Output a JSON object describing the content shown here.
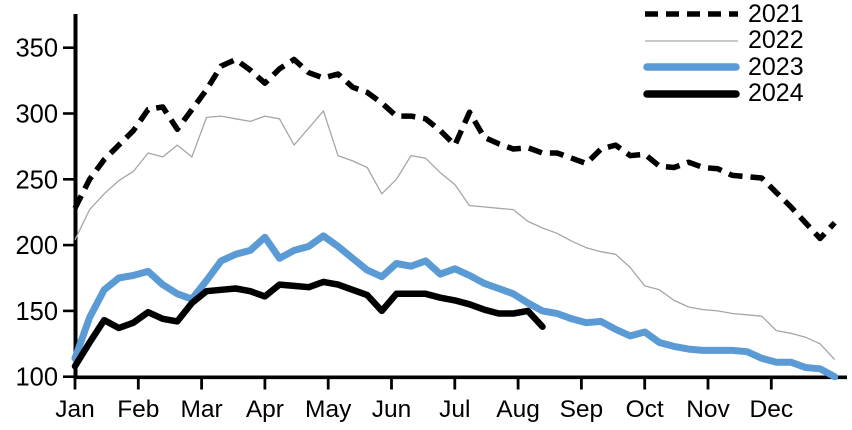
{
  "chart_data": {
    "type": "line",
    "title": "",
    "xlabel": "",
    "ylabel": "",
    "x_unit": "weekly",
    "months": [
      "Jan",
      "Feb",
      "Mar",
      "Apr",
      "May",
      "Jun",
      "Jul",
      "Aug",
      "Sep",
      "Oct",
      "Nov",
      "Dec"
    ],
    "y_ticks": [
      350,
      300,
      250,
      200,
      150,
      100
    ],
    "ylim": [
      100,
      365
    ],
    "grid": false,
    "legend_position": "top-right",
    "axis_color": "#000000",
    "series": [
      {
        "label": "2022",
        "color": "#a6a6a6",
        "style": "solid-thin",
        "stroke_width": 1.3,
        "values": [
          204,
          227,
          239,
          249,
          256,
          270,
          267,
          276,
          267,
          297,
          298,
          296,
          294,
          298,
          296,
          276,
          289,
          302,
          268,
          264,
          259,
          239,
          250,
          268,
          266,
          255,
          246,
          230,
          229,
          228,
          227,
          218,
          213,
          209,
          203,
          198,
          195,
          193,
          183,
          169,
          166,
          158,
          153,
          151,
          150,
          148,
          147,
          146,
          135,
          133,
          130,
          125,
          113
        ]
      },
      {
        "label": "2021",
        "color": "#000000",
        "style": "dashed",
        "stroke_width": 5.5,
        "values": [
          228,
          250,
          265,
          276,
          287,
          303,
          305,
          288,
          303,
          318,
          336,
          341,
          333,
          323,
          334,
          341,
          331,
          327,
          330,
          320,
          316,
          308,
          298,
          298,
          296,
          287,
          276,
          301,
          282,
          277,
          273,
          274,
          270,
          270,
          266,
          262,
          273,
          276,
          268,
          269,
          260,
          259,
          263,
          259,
          258,
          253,
          252,
          251,
          240,
          229,
          217,
          205,
          217
        ]
      },
      {
        "label": "2023",
        "color": "#5b9bd5",
        "style": "solid-thick",
        "stroke_width": 7,
        "values": [
          114,
          145,
          166,
          175,
          177,
          180,
          170,
          163,
          159,
          173,
          188,
          193,
          196,
          206,
          190,
          196,
          199,
          207,
          199,
          190,
          181,
          176,
          186,
          184,
          188,
          178,
          182,
          177,
          171,
          167,
          163,
          156,
          150,
          148,
          144,
          141,
          142,
          136,
          131,
          134,
          126,
          123,
          121,
          120,
          120,
          120,
          119,
          114,
          111,
          111,
          107,
          106,
          100
        ]
      },
      {
        "label": "2024",
        "color": "#000000",
        "style": "solid-thick",
        "stroke_width": 6.5,
        "values": [
          108,
          126,
          143,
          137,
          141,
          149,
          144,
          142,
          156,
          165,
          166,
          167,
          165,
          161,
          170,
          169,
          168,
          172,
          170,
          166,
          162,
          150,
          163,
          163,
          163,
          160,
          158,
          155,
          151,
          148,
          148,
          150,
          138
        ]
      }
    ],
    "legend_order": [
      "2021",
      "2022",
      "2023",
      "2024"
    ]
  }
}
